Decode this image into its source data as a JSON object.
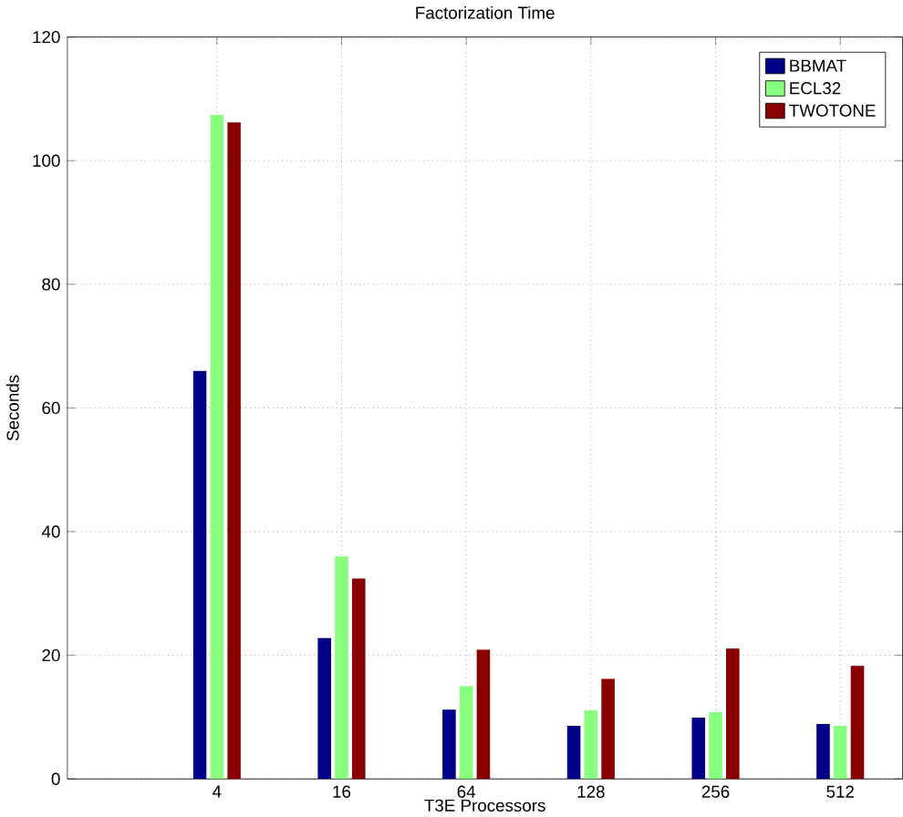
{
  "chart_data": {
    "type": "bar",
    "title": "Factorization Time",
    "xlabel": "T3E Processors",
    "ylabel": "Seconds",
    "categories": [
      "4",
      "16",
      "64",
      "128",
      "256",
      "512"
    ],
    "series": [
      {
        "name": "BBMAT",
        "color": "#000088",
        "values": [
          66,
          22.8,
          11.2,
          8.6,
          9.9,
          8.9
        ]
      },
      {
        "name": "ECL32",
        "color": "#88ff7f",
        "values": [
          107.4,
          36,
          15,
          11.1,
          10.8,
          8.6
        ]
      },
      {
        "name": "TWOTONE",
        "color": "#880000",
        "values": [
          106.2,
          32.4,
          20.9,
          16.2,
          21.1,
          18.3
        ]
      }
    ],
    "ylim": [
      0,
      120
    ],
    "yticks": [
      0,
      20,
      40,
      60,
      80,
      100,
      120
    ],
    "grid": true,
    "legend": "top right"
  }
}
